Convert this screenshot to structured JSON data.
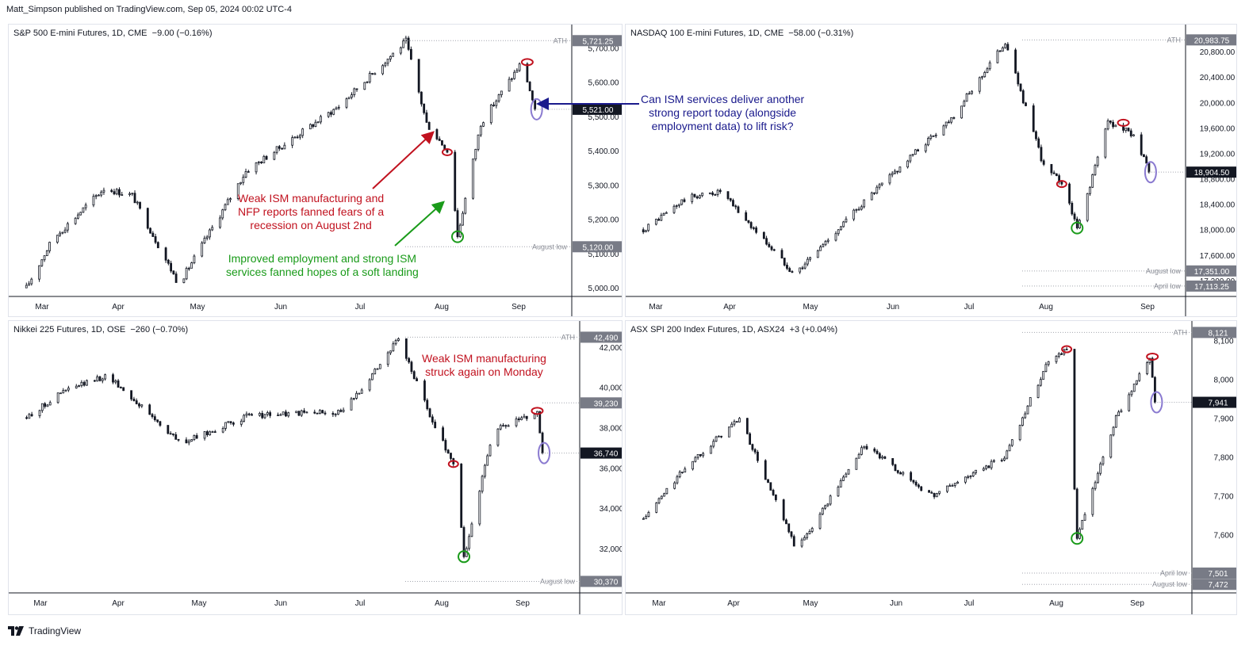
{
  "header": {
    "publisher": "Matt_Simpson published on TradingView.com, Sep 05, 2024 00:02 UTC-4"
  },
  "footer": {
    "brand": "TradingView",
    "logo": "tradingview-logo-icon"
  },
  "colors": {
    "candle": "#131722",
    "red_annotation": "#c1121f",
    "green_annotation": "#1a9b1a",
    "blue_annotation": "#1a1a8c",
    "ellipse_purple": "#8a7ad0",
    "level_line": "#a3a6af",
    "profile_blue": "#6a8fd8",
    "price_box": "#787b86",
    "last_price_box": "#131722"
  },
  "chart_data": [
    {
      "type": "candlestick",
      "title": "S&P 500 E-mini Futures, 1D, CME",
      "change": "−9.00 (−0.16%)",
      "x_tick_labels": [
        "Mar",
        "Apr",
        "May",
        "Jun",
        "Jul",
        "Aug",
        "Sep"
      ],
      "y_tick_labels": [
        "5,700.00",
        "5,600.00",
        "5,500.00",
        "5,400.00",
        "5,300.00",
        "5,200.00",
        "5,100.00",
        "5,000.00"
      ],
      "ylim": [
        4975,
        5745
      ],
      "price_labels": [
        {
          "value": 5721.25,
          "text": "5,721.25",
          "note": "ATH"
        },
        {
          "value": 5521.0,
          "text": "5,521.00",
          "note": "",
          "last": true
        },
        {
          "value": 5120.0,
          "text": "5,120.00",
          "note": "August low"
        }
      ],
      "series": [
        {
          "x": "2024-02-20",
          "close": 5000
        },
        {
          "x": "2024-03-01",
          "close": 5140
        },
        {
          "x": "2024-03-21",
          "close": 5290
        },
        {
          "x": "2024-04-01",
          "close": 5270
        },
        {
          "x": "2024-04-19",
          "close": 5010
        },
        {
          "x": "2024-05-15",
          "close": 5340
        },
        {
          "x": "2024-06-20",
          "close": 5530
        },
        {
          "x": "2024-07-16",
          "close": 5720
        },
        {
          "x": "2024-07-24",
          "close": 5480
        },
        {
          "x": "2024-08-02",
          "close": 5390
        },
        {
          "x": "2024-08-05",
          "close": 5150
        },
        {
          "x": "2024-08-14",
          "close": 5480
        },
        {
          "x": "2024-08-30",
          "close": 5660
        },
        {
          "x": "2024-09-04",
          "close": 5521
        }
      ],
      "annotations": [
        {
          "text": "Weak ISM manufacturing and\nNFP reports fanned fears of a\nrecession on August 2nd",
          "color": "red"
        },
        {
          "text": "Improved employment and strong ISM\nservices fanned hopes of a soft landing",
          "color": "green"
        },
        {
          "text": "Can ISM services deliver another\nstrong report today (alongside\nemployment data) to lift risk?",
          "color": "blue"
        }
      ]
    },
    {
      "type": "candlestick",
      "title": "NASDAQ 100 E-mini Futures, 1D, CME",
      "change": "−58.00 (−0.31%)",
      "x_tick_labels": [
        "Mar",
        "Apr",
        "May",
        "Jun",
        "Jul",
        "Aug",
        "Sep"
      ],
      "y_tick_labels": [
        "20,800.00",
        "20,400.00",
        "20,000.00",
        "19,600.00",
        "19,200.00",
        "18,800.00",
        "18,400.00",
        "18,000.00",
        "17,600.00",
        "17,200.00"
      ],
      "ylim": [
        16950,
        21100
      ],
      "price_labels": [
        {
          "value": 20983.75,
          "text": "20,983.75",
          "note": "ATH"
        },
        {
          "value": 18904.5,
          "text": "18,904.50",
          "note": "",
          "last": true
        },
        {
          "value": 17351.0,
          "text": "17,351.00",
          "note": "August low"
        },
        {
          "value": 17113.25,
          "text": "17,113.25",
          "note": "April low"
        }
      ],
      "series": [
        {
          "x": "2024-02-20",
          "close": 18000
        },
        {
          "x": "2024-03-08",
          "close": 18500
        },
        {
          "x": "2024-03-21",
          "close": 18600
        },
        {
          "x": "2024-04-19",
          "close": 17300
        },
        {
          "x": "2024-05-15",
          "close": 18400
        },
        {
          "x": "2024-06-20",
          "close": 19800
        },
        {
          "x": "2024-07-10",
          "close": 20950
        },
        {
          "x": "2024-07-25",
          "close": 19000
        },
        {
          "x": "2024-08-02",
          "close": 18700
        },
        {
          "x": "2024-08-07",
          "close": 18000
        },
        {
          "x": "2024-08-19",
          "close": 19700
        },
        {
          "x": "2024-08-29",
          "close": 19500
        },
        {
          "x": "2024-09-04",
          "close": 18904
        }
      ]
    },
    {
      "type": "candlestick",
      "title": "Nikkei 225 Futures, 1D, OSE",
      "change": "−260 (−0.70%)",
      "x_tick_labels": [
        "Mar",
        "Apr",
        "May",
        "Jun",
        "Jul",
        "Aug",
        "Sep"
      ],
      "y_tick_labels": [
        "42,000",
        "40,000",
        "38,000",
        "36,000",
        "34,000",
        "32,000"
      ],
      "ylim": [
        29800,
        42900
      ],
      "price_labels": [
        {
          "value": 42490,
          "text": "42,490",
          "note": "ATH"
        },
        {
          "value": 39230,
          "text": "39,230",
          "note": ""
        },
        {
          "value": 36740,
          "text": "36,740",
          "note": "",
          "last": true
        },
        {
          "value": 30370,
          "text": "30,370",
          "note": "August low"
        }
      ],
      "series": [
        {
          "x": "2024-02-20",
          "close": 38500
        },
        {
          "x": "2024-03-05",
          "close": 39800
        },
        {
          "x": "2024-03-22",
          "close": 40600
        },
        {
          "x": "2024-04-19",
          "close": 37200
        },
        {
          "x": "2024-05-15",
          "close": 38600
        },
        {
          "x": "2024-06-20",
          "close": 38800
        },
        {
          "x": "2024-07-11",
          "close": 42400
        },
        {
          "x": "2024-07-25",
          "close": 38000
        },
        {
          "x": "2024-08-02",
          "close": 36000
        },
        {
          "x": "2024-08-05",
          "close": 31500
        },
        {
          "x": "2024-08-16",
          "close": 37800
        },
        {
          "x": "2024-09-02",
          "close": 38800
        },
        {
          "x": "2024-09-04",
          "close": 36740
        }
      ],
      "annotations": [
        {
          "text": "Weak ISM manufacturing\nstruck again on Monday",
          "color": "red"
        }
      ]
    },
    {
      "type": "candlestick",
      "title": "ASX SPI 200 Index Futures, 1D, ASX24",
      "change": "+3 (+0.04%)",
      "x_tick_labels": [
        "Mar",
        "Apr",
        "May",
        "Jun",
        "Jul",
        "Aug",
        "Sep"
      ],
      "y_tick_labels": [
        "8,100",
        "8,000",
        "7,900",
        "7,800",
        "7,700",
        "7,600"
      ],
      "ylim": [
        7450,
        8130
      ],
      "price_labels": [
        {
          "value": 8121,
          "text": "8,121",
          "note": "ATH"
        },
        {
          "value": 7941,
          "text": "7,941",
          "note": "",
          "last": true
        },
        {
          "value": 7501,
          "text": "7,501",
          "note": "April low"
        },
        {
          "value": 7472,
          "text": "7,472",
          "note": "August low"
        }
      ],
      "series": [
        {
          "x": "2024-02-20",
          "close": 7640
        },
        {
          "x": "2024-03-08",
          "close": 7780
        },
        {
          "x": "2024-03-28",
          "close": 7900
        },
        {
          "x": "2024-04-19",
          "close": 7560
        },
        {
          "x": "2024-05-15",
          "close": 7830
        },
        {
          "x": "2024-06-10",
          "close": 7700
        },
        {
          "x": "2024-07-08",
          "close": 7800
        },
        {
          "x": "2024-07-25",
          "close": 8050
        },
        {
          "x": "2024-08-01",
          "close": 8080
        },
        {
          "x": "2024-08-05",
          "close": 7590
        },
        {
          "x": "2024-08-20",
          "close": 7900
        },
        {
          "x": "2024-09-02",
          "close": 8060
        },
        {
          "x": "2024-09-04",
          "close": 7941
        }
      ]
    }
  ]
}
